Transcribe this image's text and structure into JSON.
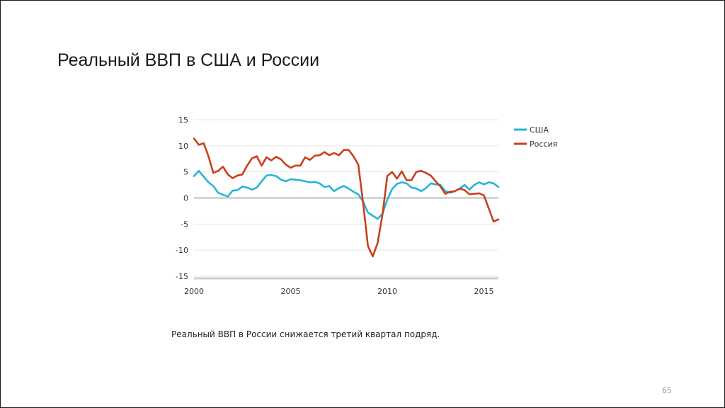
{
  "slide": {
    "title": "Реальный ВВП в США и России",
    "caption": "Реальный ВВП в России снижается третий квартал подряд.",
    "page_number": "65"
  },
  "chart_data": {
    "type": "line",
    "title": "",
    "xlabel": "",
    "ylabel": "",
    "xlim": [
      2000,
      2015.75
    ],
    "ylim": [
      -15,
      15
    ],
    "x_ticks": [
      "2000",
      "2005",
      "2010",
      "2015"
    ],
    "y_ticks": [
      "15",
      "10",
      "5",
      "0",
      "-5",
      "-10",
      "-15"
    ],
    "grid": "horizontal",
    "legend_position": "right",
    "colors": {
      "usa": "#29b3d9",
      "russia": "#c9401c",
      "grid": "#e6e6e6",
      "zero_line": "#8c8c8c",
      "axis": "#cfcfcf"
    },
    "series": [
      {
        "name": "США",
        "color": "#29b3d9",
        "x": [
          2000.0,
          2000.25,
          2000.5,
          2000.75,
          2001.0,
          2001.25,
          2001.5,
          2001.75,
          2002.0,
          2002.25,
          2002.5,
          2002.75,
          2003.0,
          2003.25,
          2003.5,
          2003.75,
          2004.0,
          2004.25,
          2004.5,
          2004.75,
          2005.0,
          2005.25,
          2005.5,
          2005.75,
          2006.0,
          2006.25,
          2006.5,
          2006.75,
          2007.0,
          2007.25,
          2007.5,
          2007.75,
          2008.0,
          2008.25,
          2008.5,
          2008.75,
          2009.0,
          2009.25,
          2009.5,
          2009.75,
          2010.0,
          2010.25,
          2010.5,
          2010.75,
          2011.0,
          2011.25,
          2011.5,
          2011.75,
          2012.0,
          2012.25,
          2012.5,
          2012.75,
          2013.0,
          2013.25,
          2013.5,
          2013.75,
          2014.0,
          2014.25,
          2014.5,
          2014.75,
          2015.0,
          2015.25,
          2015.5,
          2015.75
        ],
        "values": [
          4.2,
          5.2,
          4.1,
          3.0,
          2.3,
          1.0,
          0.6,
          0.3,
          1.4,
          1.5,
          2.2,
          2.0,
          1.6,
          2.0,
          3.2,
          4.3,
          4.4,
          4.2,
          3.5,
          3.2,
          3.6,
          3.5,
          3.4,
          3.2,
          3.0,
          3.1,
          2.8,
          2.1,
          2.3,
          1.3,
          1.9,
          2.3,
          1.8,
          1.2,
          0.7,
          -0.7,
          -2.8,
          -3.4,
          -4.0,
          -3.0,
          -0.3,
          1.7,
          2.7,
          3.0,
          2.8,
          2.0,
          1.8,
          1.3,
          1.9,
          2.8,
          2.6,
          2.5,
          1.3,
          1.0,
          1.3,
          1.8,
          2.5,
          1.6,
          2.5,
          3.0,
          2.6,
          3.0,
          2.8,
          2.1
        ]
      },
      {
        "name": "Россия",
        "color": "#c9401c",
        "x": [
          2000.0,
          2000.25,
          2000.5,
          2000.75,
          2001.0,
          2001.25,
          2001.5,
          2001.75,
          2002.0,
          2002.25,
          2002.5,
          2002.75,
          2003.0,
          2003.25,
          2003.5,
          2003.75,
          2004.0,
          2004.25,
          2004.5,
          2004.75,
          2005.0,
          2005.25,
          2005.5,
          2005.75,
          2006.0,
          2006.25,
          2006.5,
          2006.75,
          2007.0,
          2007.25,
          2007.5,
          2007.75,
          2008.0,
          2008.25,
          2008.5,
          2008.75,
          2009.0,
          2009.25,
          2009.5,
          2009.75,
          2010.0,
          2010.25,
          2010.5,
          2010.75,
          2011.0,
          2011.25,
          2011.5,
          2011.75,
          2012.0,
          2012.25,
          2012.5,
          2012.75,
          2013.0,
          2013.25,
          2013.5,
          2013.75,
          2014.0,
          2014.25,
          2014.5,
          2014.75,
          2015.0,
          2015.25,
          2015.5,
          2015.75
        ],
        "values": [
          11.4,
          10.2,
          10.5,
          8.0,
          4.8,
          5.2,
          6.0,
          4.5,
          3.8,
          4.3,
          4.5,
          6.2,
          7.6,
          8.0,
          6.2,
          7.8,
          7.2,
          7.9,
          7.4,
          6.4,
          5.8,
          6.2,
          6.2,
          7.8,
          7.3,
          8.1,
          8.2,
          8.8,
          8.2,
          8.6,
          8.2,
          9.2,
          9.2,
          8.0,
          6.4,
          -1.0,
          -9.2,
          -11.2,
          -8.6,
          -3.2,
          4.2,
          5.0,
          3.7,
          5.1,
          3.4,
          3.4,
          5.0,
          5.2,
          4.8,
          4.3,
          3.2,
          2.2,
          0.8,
          1.2,
          1.3,
          1.8,
          1.5,
          0.7,
          0.8,
          0.9,
          0.5,
          -2.0,
          -4.5,
          -4.1
        ]
      }
    ]
  }
}
